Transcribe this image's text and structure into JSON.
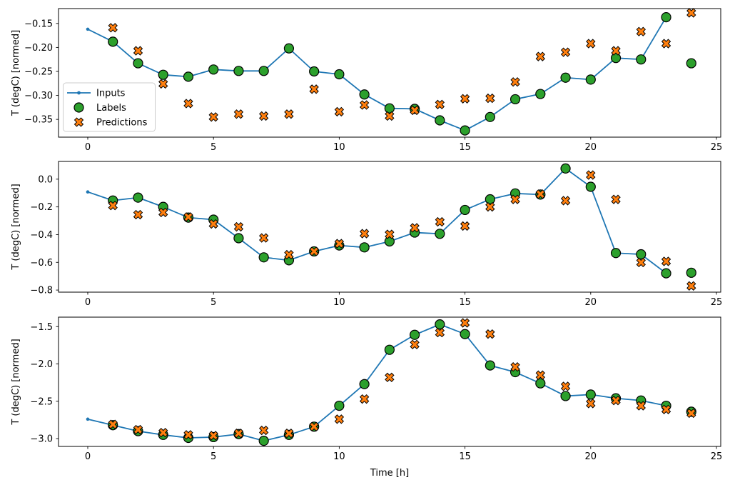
{
  "figure": {
    "xlabel": "Time [h]",
    "legend": {
      "items": [
        {
          "label": "Inputs",
          "type": "line"
        },
        {
          "label": "Labels",
          "type": "circle"
        },
        {
          "label": "Predictions",
          "type": "x"
        }
      ]
    },
    "colors": {
      "inputs": "#1f77b4",
      "labels": "#2ca02c",
      "predictions": "#ff7f0e",
      "marker_edge": "#000000",
      "frame": "#000000",
      "legend_border": "#cccccc",
      "legend_bg": "#ffffff"
    }
  },
  "chart_data": [
    {
      "type": "line",
      "subplot": "top",
      "ylabel": "T (degC) [normed]",
      "xlim": [
        -1.163,
        25.17
      ],
      "ylim": [
        -0.387,
        -0.119
      ],
      "xticks": [
        0,
        5,
        10,
        15,
        20,
        25
      ],
      "yticks": [
        -0.15,
        -0.2,
        -0.25,
        -0.3,
        -0.35
      ],
      "ytick_labels": [
        "−0.15",
        "−0.20",
        "−0.25",
        "−0.30",
        "−0.35"
      ],
      "grid": false,
      "legend_position": "center-left",
      "series": [
        {
          "name": "Inputs",
          "type": "line+dots",
          "x_start": 0,
          "values": [
            -0.162,
            -0.188,
            -0.233,
            -0.257,
            -0.261,
            -0.246,
            -0.249,
            -0.249,
            -0.202,
            -0.25,
            -0.256,
            -0.298,
            -0.327,
            -0.328,
            -0.352,
            -0.373,
            -0.345,
            -0.308,
            -0.297,
            -0.263,
            -0.267,
            -0.222,
            -0.225,
            -0.137
          ]
        },
        {
          "name": "Labels",
          "type": "scatter-circle",
          "x_start": 1,
          "values": [
            -0.188,
            -0.233,
            -0.257,
            -0.261,
            -0.246,
            -0.249,
            -0.249,
            -0.202,
            -0.25,
            -0.256,
            -0.298,
            -0.327,
            -0.328,
            -0.352,
            -0.373,
            -0.345,
            -0.308,
            -0.297,
            -0.263,
            -0.267,
            -0.222,
            -0.225,
            -0.137,
            -0.233
          ]
        },
        {
          "name": "Predictions",
          "type": "scatter-x",
          "x_start": 1,
          "values": [
            -0.159,
            -0.207,
            -0.276,
            -0.317,
            -0.345,
            -0.339,
            -0.343,
            -0.339,
            -0.287,
            -0.334,
            -0.32,
            -0.343,
            -0.331,
            -0.319,
            -0.307,
            -0.306,
            -0.272,
            -0.219,
            -0.21,
            -0.192,
            -0.207,
            -0.167,
            -0.192,
            -0.128
          ]
        }
      ]
    },
    {
      "type": "line",
      "subplot": "middle",
      "ylabel": "T (degC) [normed]",
      "xlim": [
        -1.163,
        25.17
      ],
      "ylim": [
        -0.815,
        0.128
      ],
      "xticks": [
        0,
        5,
        10,
        15,
        20,
        25
      ],
      "yticks": [
        0.0,
        -0.2,
        -0.4,
        -0.6,
        -0.8
      ],
      "ytick_labels": [
        "0.0",
        "−0.2",
        "−0.4",
        "−0.6",
        "−0.8"
      ],
      "grid": false,
      "series": [
        {
          "name": "Inputs",
          "type": "line+dots",
          "x_start": 0,
          "values": [
            -0.092,
            -0.154,
            -0.133,
            -0.2,
            -0.277,
            -0.292,
            -0.426,
            -0.564,
            -0.585,
            -0.521,
            -0.478,
            -0.492,
            -0.449,
            -0.385,
            -0.394,
            -0.222,
            -0.145,
            -0.103,
            -0.111,
            0.077,
            -0.055,
            -0.533,
            -0.542,
            -0.679
          ]
        },
        {
          "name": "Labels",
          "type": "scatter-circle",
          "x_start": 1,
          "values": [
            -0.154,
            -0.133,
            -0.2,
            -0.277,
            -0.292,
            -0.426,
            -0.564,
            -0.585,
            -0.521,
            -0.478,
            -0.492,
            -0.449,
            -0.385,
            -0.394,
            -0.222,
            -0.145,
            -0.103,
            -0.111,
            0.077,
            -0.055,
            -0.533,
            -0.542,
            -0.679,
            -0.675
          ]
        },
        {
          "name": "Predictions",
          "type": "scatter-x",
          "x_start": 1,
          "values": [
            -0.19,
            -0.256,
            -0.24,
            -0.273,
            -0.323,
            -0.344,
            -0.424,
            -0.545,
            -0.521,
            -0.465,
            -0.393,
            -0.398,
            -0.351,
            -0.308,
            -0.338,
            -0.2,
            -0.146,
            -0.108,
            -0.155,
            0.03,
            -0.146,
            -0.601,
            -0.593,
            -0.77
          ]
        }
      ]
    },
    {
      "type": "line",
      "subplot": "bottom",
      "ylabel": "T (degC) [normed]",
      "xlim": [
        -1.163,
        25.17
      ],
      "ylim": [
        -3.105,
        -1.373
      ],
      "xticks": [
        0,
        5,
        10,
        15,
        20,
        25
      ],
      "yticks": [
        -1.5,
        -2.0,
        -2.5,
        -3.0
      ],
      "ytick_labels": [
        "−1.5",
        "−2.0",
        "−2.5",
        "−3.0"
      ],
      "grid": false,
      "series": [
        {
          "name": "Inputs",
          "type": "line+dots",
          "x_start": 0,
          "values": [
            -2.74,
            -2.82,
            -2.9,
            -2.95,
            -2.99,
            -2.98,
            -2.94,
            -3.03,
            -2.95,
            -2.84,
            -2.56,
            -2.27,
            -1.81,
            -1.61,
            -1.47,
            -1.6,
            -2.02,
            -2.11,
            -2.26,
            -2.43,
            -2.41,
            -2.46,
            -2.49,
            -2.56
          ]
        },
        {
          "name": "Labels",
          "type": "scatter-circle",
          "x_start": 1,
          "values": [
            -2.82,
            -2.9,
            -2.95,
            -2.99,
            -2.98,
            -2.94,
            -3.03,
            -2.95,
            -2.84,
            -2.56,
            -2.27,
            -1.81,
            -1.61,
            -1.47,
            -1.6,
            -2.02,
            -2.11,
            -2.26,
            -2.43,
            -2.41,
            -2.46,
            -2.49,
            -2.56,
            -2.64
          ]
        },
        {
          "name": "Predictions",
          "type": "scatter-x",
          "x_start": 1,
          "values": [
            -2.81,
            -2.88,
            -2.92,
            -2.95,
            -2.96,
            -2.93,
            -2.89,
            -2.93,
            -2.84,
            -2.74,
            -2.47,
            -2.18,
            -1.74,
            -1.58,
            -1.45,
            -1.6,
            -2.04,
            -2.15,
            -2.3,
            -2.53,
            -2.49,
            -2.56,
            -2.61,
            -2.66
          ]
        }
      ]
    }
  ]
}
